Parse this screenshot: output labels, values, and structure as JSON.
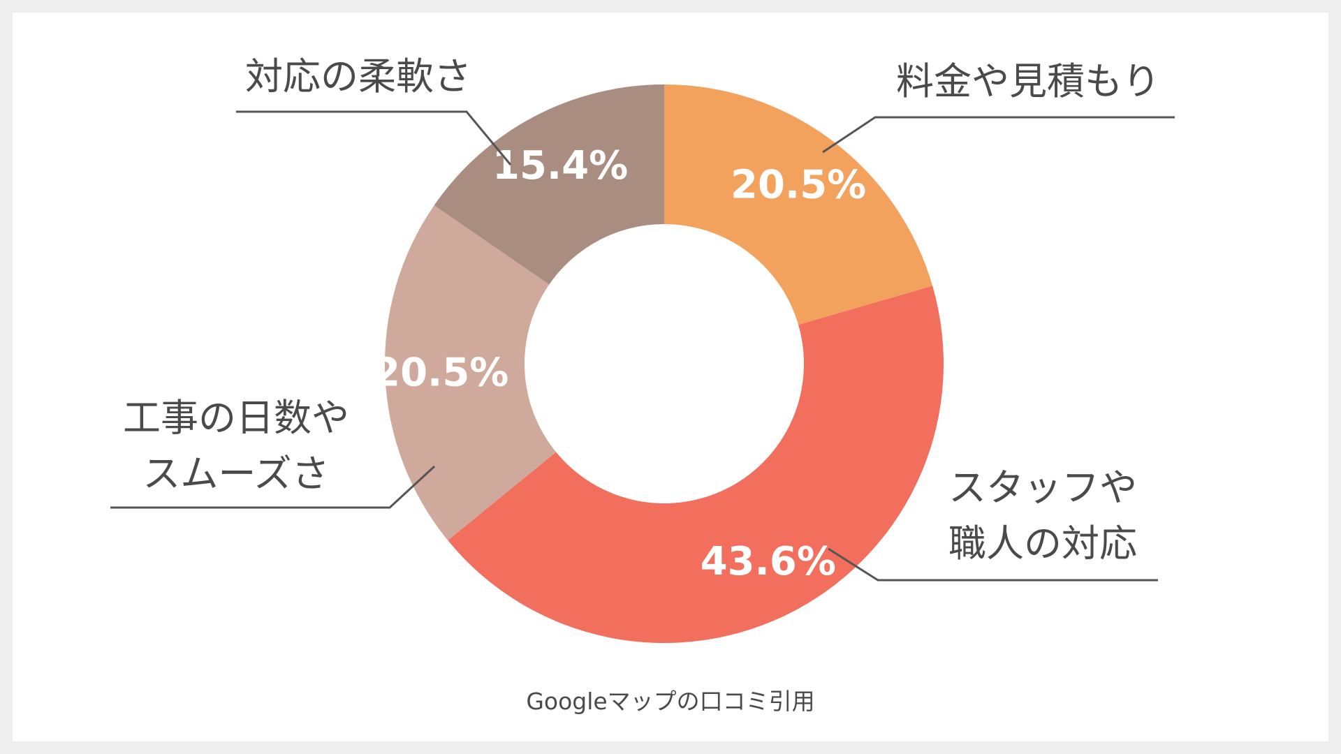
{
  "chart_data": {
    "type": "pie",
    "variant": "donut",
    "title": "",
    "categories": [
      "料金や見積もり",
      "スタッフや職人の対応",
      "工事の日数やスムーズさ",
      "対応の柔軟さ"
    ],
    "category_lines": [
      [
        "料金や見積もり"
      ],
      [
        "スタッフや",
        "職人の対応"
      ],
      [
        "工事の日数や",
        "スムーズさ"
      ],
      [
        "対応の柔軟さ"
      ]
    ],
    "values": [
      20.5,
      43.6,
      20.5,
      15.4
    ],
    "value_labels": [
      "20.5%",
      "43.6%",
      "20.5%",
      "15.4%"
    ],
    "colors": [
      "#f3a25d",
      "#f26f5e",
      "#cfa99b",
      "#a98d80"
    ],
    "start": "top",
    "direction": "clockwise",
    "legend": "none"
  },
  "footer": {
    "source": "Googleマップの口コミ引用"
  }
}
